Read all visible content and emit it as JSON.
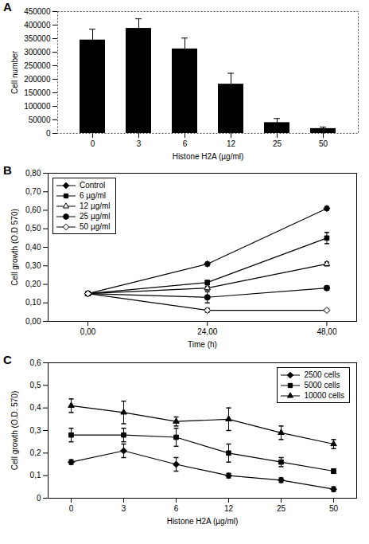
{
  "chart_data": [
    {
      "title": "A",
      "type": "bar",
      "categories": [
        "0",
        "3",
        "6",
        "12",
        "25",
        "50"
      ],
      "values": [
        345000,
        388000,
        312000,
        182000,
        40000,
        18000
      ],
      "errors": [
        40000,
        35000,
        40000,
        40000,
        15000,
        5000
      ],
      "color": "#000000",
      "x_label": "Histone H2A (µg/ml)",
      "y_label": "Cell number",
      "ylim": [
        0,
        450000
      ],
      "yticks": [
        0,
        50000,
        100000,
        150000,
        200000,
        250000,
        300000,
        350000,
        400000,
        450000
      ]
    },
    {
      "title": "B",
      "type": "line",
      "x": [
        0,
        24,
        48
      ],
      "xlim": [
        -8,
        54
      ],
      "xticks": [
        {
          "value": 0,
          "label": "0,00"
        },
        {
          "value": 24,
          "label": "24,00"
        },
        {
          "value": 48,
          "label": "48,00"
        }
      ],
      "ylim": [
        0,
        0.8
      ],
      "yticks": [
        {
          "value": 0,
          "label": "0,00"
        },
        {
          "value": 0.1,
          "label": "0,10"
        },
        {
          "value": 0.2,
          "label": "0,20"
        },
        {
          "value": 0.3,
          "label": "0,30"
        },
        {
          "value": 0.4,
          "label": "0,40"
        },
        {
          "value": 0.5,
          "label": "0,50"
        },
        {
          "value": 0.6,
          "label": "0,60"
        },
        {
          "value": 0.7,
          "label": "0,70"
        },
        {
          "value": 0.8,
          "label": "0,80"
        }
      ],
      "x_label": "Time (h)",
      "y_label": "Cell growth (O.D 570)",
      "legend": "upper left",
      "series": [
        {
          "name": "Control",
          "color": "#000000",
          "marker": "diamond",
          "values": [
            0.15,
            0.31,
            0.61
          ],
          "errors": [
            0.005,
            0.01,
            0.01
          ]
        },
        {
          "name": "6 µg/ml",
          "color": "#000000",
          "marker": "square",
          "values": [
            0.15,
            0.21,
            0.45
          ],
          "errors": [
            0.005,
            0.01,
            0.03
          ]
        },
        {
          "name": "12 µg/ml",
          "color": "#000000",
          "marker": "open triangle",
          "values": [
            0.15,
            0.18,
            0.31
          ],
          "errors": [
            0.005,
            0.01,
            0.01
          ]
        },
        {
          "name": "25 µg/ml",
          "color": "#000000",
          "marker": "circle",
          "values": [
            0.15,
            0.13,
            0.18
          ],
          "errors": [
            0.005,
            0.03,
            0.01
          ]
        },
        {
          "name": "50 µg/ml",
          "color": "#000000",
          "marker": "open diamond",
          "values": [
            0.15,
            0.06,
            0.06
          ],
          "errors": [
            0.005,
            0.01,
            0.005
          ]
        }
      ]
    },
    {
      "title": "C",
      "type": "line",
      "categories": [
        "0",
        "3",
        "6",
        "12",
        "25",
        "50"
      ],
      "ylim": [
        0,
        0.6
      ],
      "yticks": [
        0,
        {
          "value": 0.1,
          "label": "0,1"
        },
        {
          "value": 0.2,
          "label": "0,2"
        },
        {
          "value": 0.3,
          "label": "0,3"
        },
        {
          "value": 0.4,
          "label": "0,4"
        },
        {
          "value": 0.5,
          "label": "0,5"
        },
        {
          "value": 0.6,
          "label": "0,6"
        }
      ],
      "x_label": "Histone H2A (µg/ml)",
      "y_label": "Cell growth (O.D. 570)",
      "legend": "upper right",
      "series": [
        {
          "name": "2500 cells",
          "color": "#000000",
          "marker": "diamond",
          "values": [
            0.16,
            0.21,
            0.15,
            0.1,
            0.08,
            0.04
          ],
          "errors": [
            0.01,
            0.03,
            0.03,
            0.01,
            0.01,
            0.01
          ]
        },
        {
          "name": "5000 cells",
          "color": "#000000",
          "marker": "square",
          "values": [
            0.28,
            0.28,
            0.27,
            0.2,
            0.16,
            0.12
          ],
          "errors": [
            0.03,
            0.03,
            0.04,
            0.04,
            0.02,
            0.01
          ]
        },
        {
          "name": "10000 cells",
          "color": "#000000",
          "marker": "triangle",
          "values": [
            0.41,
            0.38,
            0.34,
            0.35,
            0.29,
            0.24
          ],
          "errors": [
            0.03,
            0.05,
            0.02,
            0.05,
            0.03,
            0.02
          ]
        }
      ]
    }
  ]
}
